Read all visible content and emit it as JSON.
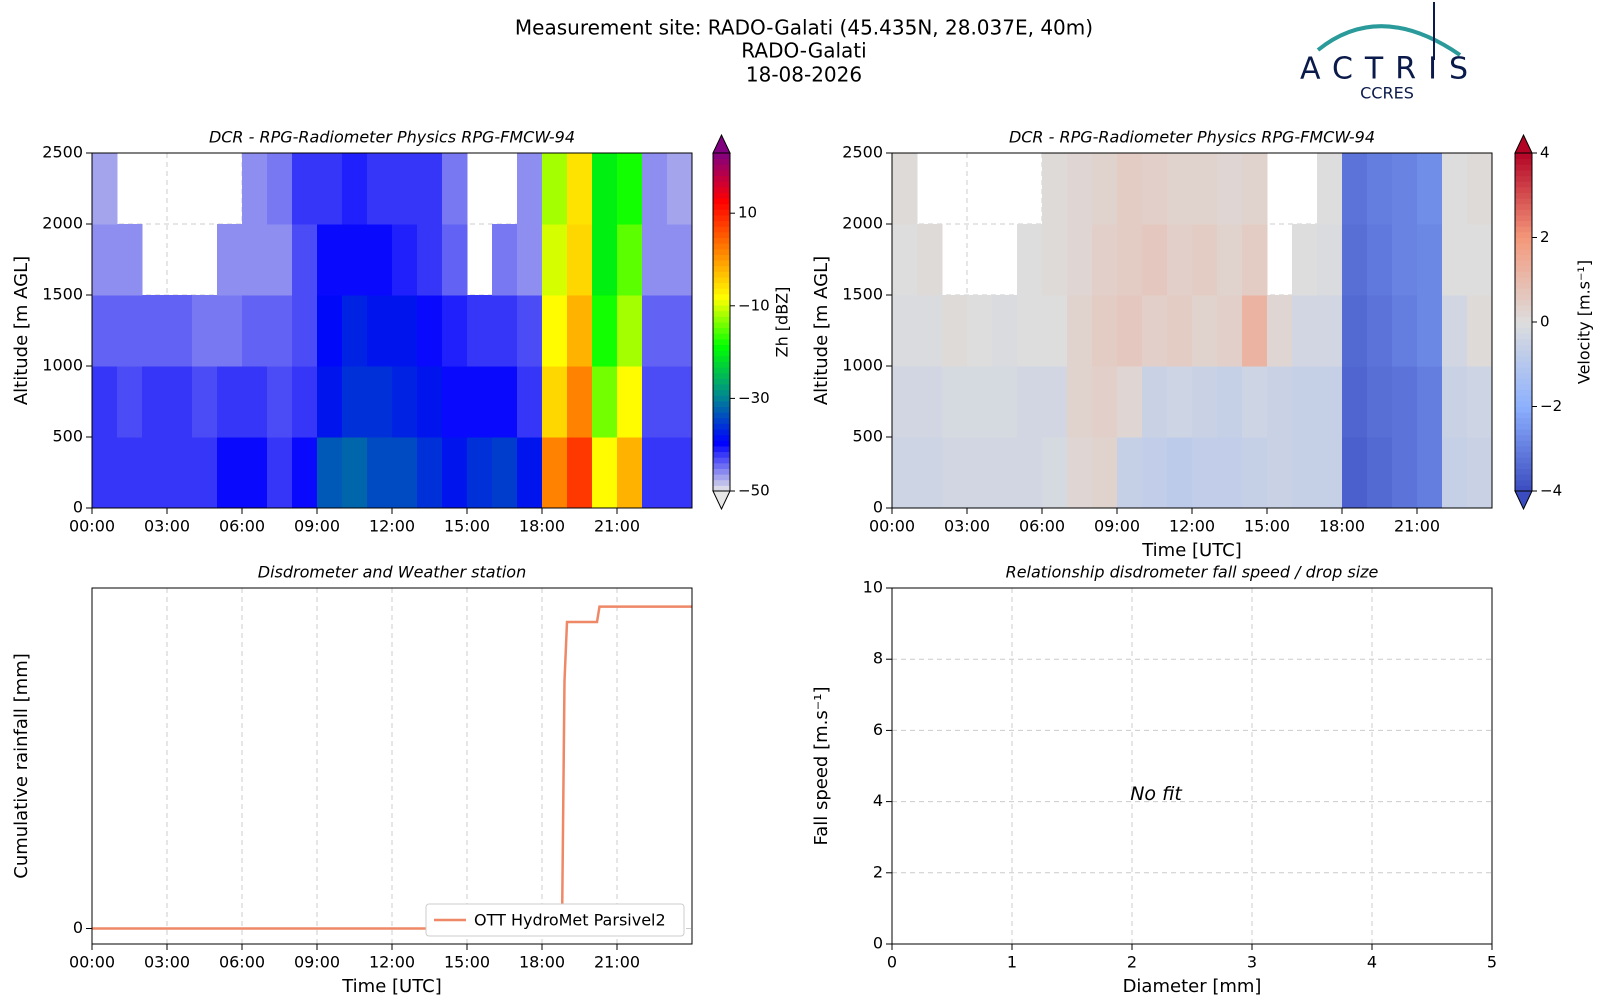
{
  "header": {
    "title_lines": [
      "Measurement site: RADO-Galati (45.435N, 28.037E, 40m)",
      "RADO-Galati",
      "18-08-2026"
    ],
    "logo": "ACTRIS",
    "logo_sub": "CCRES"
  },
  "chart_data": [
    {
      "type": "heatmap",
      "title": "DCR - RPG-Radiometer Physics RPG-FMCW-94",
      "ylabel": "Altitude [m AGL]",
      "x_edges": [
        0,
        1,
        2,
        3,
        4,
        5,
        6,
        7,
        8,
        9,
        10,
        11,
        12,
        13,
        14,
        15,
        16,
        17,
        18,
        19,
        20,
        21,
        22,
        23,
        24
      ],
      "y_edges": [
        0,
        500,
        1000,
        1500,
        2000,
        2500
      ],
      "z": [
        [
          -42,
          -42,
          -42,
          -42,
          -42,
          -40,
          -40,
          -42,
          -40,
          -33,
          -32,
          -34,
          -34,
          -36,
          -38,
          -36,
          -35,
          -38,
          2,
          8,
          -8,
          -2,
          -42,
          -42
        ],
        [
          -42,
          -43,
          -42,
          -42,
          -43,
          -42,
          -42,
          -43,
          -42,
          -38,
          -36,
          -36,
          -37,
          -38,
          -40,
          -40,
          -40,
          -42,
          -5,
          2,
          -14,
          -8,
          -43,
          -43
        ],
        [
          -44,
          -44,
          -44,
          -44,
          -45,
          -45,
          -44,
          -44,
          -43,
          -39,
          -37,
          -38,
          -38,
          -40,
          -41,
          -42,
          -42,
          -43,
          -8,
          -2,
          -18,
          -12,
          -44,
          -44
        ],
        [
          -46,
          -46,
          null,
          null,
          null,
          -46,
          -46,
          -46,
          -43,
          -40,
          -40,
          -40,
          -41,
          -42,
          -44,
          null,
          -45,
          -46,
          -10,
          -5,
          -20,
          -15,
          -46,
          -46
        ],
        [
          -47,
          null,
          null,
          null,
          null,
          null,
          -46,
          -45,
          -42,
          -42,
          -41,
          -42,
          -42,
          -42,
          -45,
          null,
          null,
          -46,
          -12,
          -6,
          -20,
          -18,
          -46,
          -47
        ]
      ],
      "colormap": [
        "#e6e6e6",
        "#0000ff",
        "#008c8c",
        "#00ff00",
        "#ffff00",
        "#ff8000",
        "#ff0000",
        "#800080"
      ],
      "zlim": [
        -50,
        23
      ],
      "zticks": [
        {
          "value": -50,
          "label": "−50"
        },
        {
          "value": -30,
          "label": "−30"
        },
        {
          "value": -10,
          "label": "−10"
        },
        10
      ],
      "zlabel": "Zh [dBZ]",
      "xlim": [
        0,
        24
      ],
      "xticks": [
        {
          "value": 0,
          "label": "00:00"
        },
        {
          "value": 3,
          "label": "03:00"
        },
        {
          "value": 6,
          "label": "06:00"
        },
        {
          "value": 9,
          "label": "09:00"
        },
        {
          "value": 12,
          "label": "12:00"
        },
        {
          "value": 15,
          "label": "15:00"
        },
        {
          "value": 18,
          "label": "18:00"
        },
        {
          "value": 21,
          "label": "21:00"
        }
      ],
      "ylim": [
        0,
        2500
      ],
      "yticks": [
        0,
        500,
        1000,
        1500,
        2000,
        2500
      ],
      "grid": true
    },
    {
      "type": "heatmap",
      "title": "DCR - RPG-Radiometer Physics RPG-FMCW-94",
      "ylabel": "Altitude [m AGL]",
      "xlabel": "Time [UTC]",
      "x_edges": [
        0,
        1,
        2,
        3,
        4,
        5,
        6,
        7,
        8,
        9,
        10,
        11,
        12,
        13,
        14,
        15,
        16,
        17,
        18,
        19,
        20,
        21,
        22,
        23,
        24
      ],
      "y_edges": [
        0,
        500,
        1000,
        1500,
        2000,
        2500
      ],
      "z": [
        [
          -0.4,
          -0.4,
          -0.3,
          -0.3,
          -0.3,
          -0.3,
          -0.2,
          0.2,
          0.3,
          -0.6,
          -0.7,
          -0.8,
          -0.7,
          -0.7,
          -0.6,
          -0.5,
          -0.6,
          -0.6,
          -3.6,
          -3.4,
          -3.2,
          -3.0,
          -0.6,
          -0.5
        ],
        [
          -0.3,
          -0.3,
          -0.2,
          -0.2,
          -0.2,
          -0.3,
          -0.3,
          0.3,
          0.4,
          0.2,
          -0.5,
          -0.4,
          -0.5,
          -0.6,
          -0.4,
          -0.5,
          -0.6,
          -0.6,
          -3.5,
          -3.3,
          -3.2,
          -3.0,
          -0.5,
          -0.4
        ],
        [
          -0.1,
          -0.1,
          0.1,
          0.0,
          -0.1,
          0.0,
          0.0,
          0.3,
          0.5,
          0.6,
          0.4,
          0.5,
          0.3,
          0.4,
          1.2,
          0.2,
          -0.3,
          -0.3,
          -3.4,
          -3.2,
          -3.0,
          -2.8,
          -0.3,
          0.1
        ],
        [
          0.0,
          0.1,
          null,
          null,
          null,
          0.0,
          0.1,
          0.2,
          0.4,
          0.5,
          0.6,
          0.4,
          0.5,
          0.3,
          0.5,
          null,
          0.0,
          -0.1,
          -3.3,
          -3.1,
          -2.9,
          -2.8,
          0.0,
          0.0
        ],
        [
          0.1,
          null,
          null,
          null,
          null,
          null,
          0.1,
          0.2,
          0.3,
          0.5,
          0.4,
          0.3,
          0.3,
          0.2,
          0.3,
          null,
          null,
          0.0,
          -3.2,
          -3.0,
          -2.9,
          -2.7,
          0.0,
          0.1
        ]
      ],
      "colormap": [
        "#3b4cc0",
        "#8db0fe",
        "#dddddd",
        "#f4987a",
        "#b40426"
      ],
      "zlim": [
        -4,
        4
      ],
      "zticks": [
        {
          "value": -4,
          "label": "−4"
        },
        {
          "value": -2,
          "label": "−2"
        },
        0,
        2,
        4
      ],
      "zlabel": "Velocity [m.s⁻¹]",
      "xlim": [
        0,
        24
      ],
      "xticks": [
        {
          "value": 0,
          "label": "00:00"
        },
        {
          "value": 3,
          "label": "03:00"
        },
        {
          "value": 6,
          "label": "06:00"
        },
        {
          "value": 9,
          "label": "09:00"
        },
        {
          "value": 12,
          "label": "12:00"
        },
        {
          "value": 15,
          "label": "15:00"
        },
        {
          "value": 18,
          "label": "18:00"
        },
        {
          "value": 21,
          "label": "21:00"
        }
      ],
      "ylim": [
        0,
        2500
      ],
      "yticks": [
        0,
        500,
        1000,
        1500,
        2000,
        2500
      ],
      "grid": true
    },
    {
      "type": "line",
      "title": "Disdrometer and Weather station",
      "ylabel": "Cumulative rainfall [mm]",
      "xlabel": "Time [UTC]",
      "x": [
        0,
        18.8,
        18.9,
        19.0,
        20.2,
        20.3,
        24
      ],
      "series": [
        {
          "name": "OTT HydroMet Parsivel2",
          "color": "#ee8866",
          "values": [
            0,
            0,
            8,
            9.9,
            9.9,
            10.4,
            10.4
          ]
        }
      ],
      "legend": "lower right",
      "xlim": [
        0,
        24
      ],
      "xticks": [
        {
          "value": 0,
          "label": "00:00"
        },
        {
          "value": 3,
          "label": "03:00"
        },
        {
          "value": 6,
          "label": "06:00"
        },
        {
          "value": 9,
          "label": "09:00"
        },
        {
          "value": 12,
          "label": "12:00"
        },
        {
          "value": 15,
          "label": "15:00"
        },
        {
          "value": 18,
          "label": "18:00"
        },
        {
          "value": 21,
          "label": "21:00"
        }
      ],
      "ylim": [
        -0.5,
        11
      ],
      "yticks": [
        0
      ],
      "grid": true
    },
    {
      "type": "scatter",
      "title": "Relationship disdrometer fall speed / drop size",
      "ylabel": "Fall speed [m.s⁻¹]",
      "xlabel": "Diameter [mm]",
      "x": [],
      "values": [],
      "annotations": [
        {
          "text": "No fit",
          "x": 2.2,
          "y": 4.2
        }
      ],
      "xlim": [
        0,
        5
      ],
      "xticks": [
        0,
        1,
        2,
        3,
        4,
        5
      ],
      "ylim": [
        0,
        10
      ],
      "yticks": [
        0,
        2,
        4,
        6,
        8,
        10
      ],
      "grid": true
    }
  ]
}
